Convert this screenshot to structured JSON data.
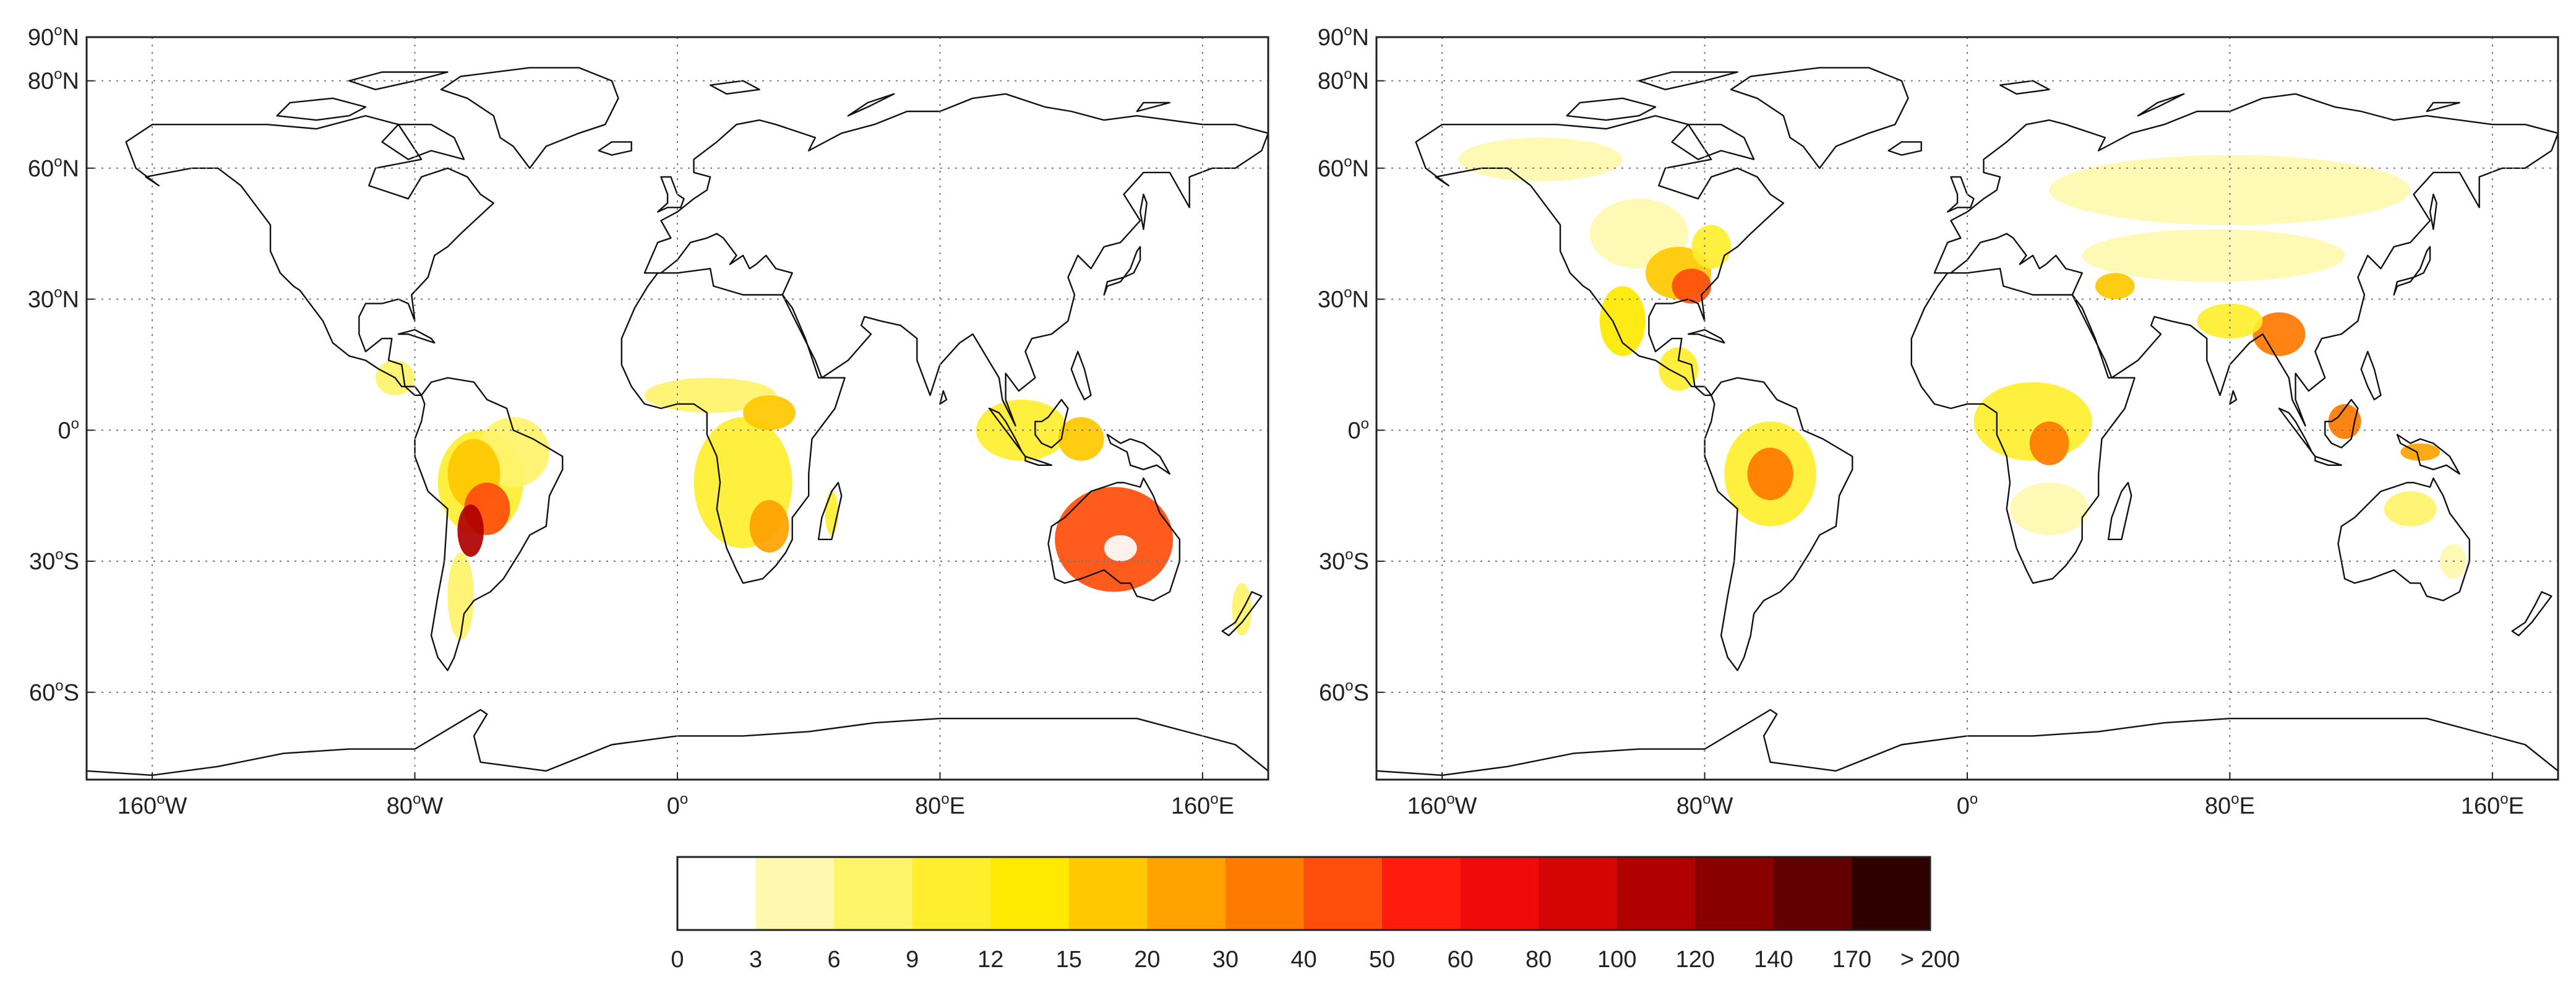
{
  "maps": [
    {
      "name": "left-map",
      "x_ticks": [
        {
          "value": -160,
          "deg": "160",
          "suffix": "W"
        },
        {
          "value": -80,
          "deg": "80",
          "suffix": "W"
        },
        {
          "value": 0,
          "deg": "0",
          "suffix": ""
        },
        {
          "value": 80,
          "deg": "80",
          "suffix": "E"
        },
        {
          "value": 160,
          "deg": "160",
          "suffix": "E"
        }
      ],
      "y_ticks": [
        {
          "value": 90,
          "deg": "90",
          "suffix": "N"
        },
        {
          "value": 80,
          "deg": "80",
          "suffix": "N"
        },
        {
          "value": 60,
          "deg": "60",
          "suffix": "N"
        },
        {
          "value": 30,
          "deg": "30",
          "suffix": "N"
        },
        {
          "value": 0,
          "deg": "0",
          "suffix": ""
        },
        {
          "value": -30,
          "deg": "30",
          "suffix": "S"
        },
        {
          "value": -60,
          "deg": "60",
          "suffix": "S"
        }
      ],
      "regions": [
        {
          "lon": -60,
          "lat": -12,
          "rx": 13,
          "ry": 12,
          "class": 3
        },
        {
          "lon": -50,
          "lat": -5,
          "rx": 11,
          "ry": 8,
          "class": 2
        },
        {
          "lon": -62,
          "lat": -10,
          "rx": 8,
          "ry": 8,
          "class": 5
        },
        {
          "lon": -58,
          "lat": -18,
          "rx": 7,
          "ry": 6,
          "class": 8
        },
        {
          "lon": -63,
          "lat": -23,
          "rx": 4,
          "ry": 6,
          "class": 12
        },
        {
          "lon": -66,
          "lat": -38,
          "rx": 4,
          "ry": 10,
          "class": 2
        },
        {
          "lon": -86,
          "lat": 12,
          "rx": 6,
          "ry": 4,
          "class": 2
        },
        {
          "lon": 20,
          "lat": -12,
          "rx": 15,
          "ry": 15,
          "class": 3
        },
        {
          "lon": 10,
          "lat": 8,
          "rx": 20,
          "ry": 4,
          "class": 2
        },
        {
          "lon": 28,
          "lat": 4,
          "rx": 8,
          "ry": 4,
          "class": 5
        },
        {
          "lon": 28,
          "lat": -22,
          "rx": 6,
          "ry": 6,
          "class": 6
        },
        {
          "lon": 47,
          "lat": -19,
          "rx": 2,
          "ry": 5,
          "class": 3
        },
        {
          "lon": 105,
          "lat": 0,
          "rx": 14,
          "ry": 7,
          "class": 3
        },
        {
          "lon": 123,
          "lat": -2,
          "rx": 7,
          "ry": 5,
          "class": 5
        },
        {
          "lon": 133,
          "lat": -25,
          "rx": 18,
          "ry": 12,
          "class": 8
        },
        {
          "lon": 135,
          "lat": -27,
          "rx": 5,
          "ry": 3,
          "class": 0
        },
        {
          "lon": 172,
          "lat": -41,
          "rx": 3,
          "ry": 6,
          "class": 2
        }
      ]
    },
    {
      "name": "right-map",
      "x_ticks": [
        {
          "value": -160,
          "deg": "160",
          "suffix": "W"
        },
        {
          "value": -80,
          "deg": "80",
          "suffix": "W"
        },
        {
          "value": 0,
          "deg": "0",
          "suffix": ""
        },
        {
          "value": 80,
          "deg": "80",
          "suffix": "E"
        },
        {
          "value": 160,
          "deg": "160",
          "suffix": "E"
        }
      ],
      "y_ticks": [
        {
          "value": 90,
          "deg": "90",
          "suffix": "N"
        },
        {
          "value": 80,
          "deg": "80",
          "suffix": "N"
        },
        {
          "value": 60,
          "deg": "60",
          "suffix": "N"
        },
        {
          "value": 30,
          "deg": "30",
          "suffix": "N"
        },
        {
          "value": 0,
          "deg": "0",
          "suffix": ""
        },
        {
          "value": -30,
          "deg": "30",
          "suffix": "S"
        },
        {
          "value": -60,
          "deg": "60",
          "suffix": "S"
        }
      ],
      "regions": [
        {
          "lon": -130,
          "lat": 62,
          "rx": 25,
          "ry": 5,
          "class": 1
        },
        {
          "lon": -100,
          "lat": 45,
          "rx": 15,
          "ry": 8,
          "class": 1
        },
        {
          "lon": -88,
          "lat": 36,
          "rx": 10,
          "ry": 6,
          "class": 5
        },
        {
          "lon": -84,
          "lat": 33,
          "rx": 6,
          "ry": 4,
          "class": 8
        },
        {
          "lon": -78,
          "lat": 42,
          "rx": 6,
          "ry": 5,
          "class": 3
        },
        {
          "lon": -105,
          "lat": 25,
          "rx": 7,
          "ry": 8,
          "class": 4
        },
        {
          "lon": -88,
          "lat": 14,
          "rx": 6,
          "ry": 5,
          "class": 3
        },
        {
          "lon": -60,
          "lat": -10,
          "rx": 14,
          "ry": 12,
          "class": 3
        },
        {
          "lon": -60,
          "lat": -10,
          "rx": 7,
          "ry": 6,
          "class": 7
        },
        {
          "lon": 20,
          "lat": 2,
          "rx": 18,
          "ry": 9,
          "class": 3
        },
        {
          "lon": 25,
          "lat": -3,
          "rx": 6,
          "ry": 5,
          "class": 7
        },
        {
          "lon": 25,
          "lat": -18,
          "rx": 12,
          "ry": 6,
          "class": 1
        },
        {
          "lon": 80,
          "lat": 55,
          "rx": 55,
          "ry": 8,
          "class": 1
        },
        {
          "lon": 75,
          "lat": 40,
          "rx": 40,
          "ry": 6,
          "class": 1
        },
        {
          "lon": 45,
          "lat": 33,
          "rx": 6,
          "ry": 3,
          "class": 5
        },
        {
          "lon": 95,
          "lat": 22,
          "rx": 8,
          "ry": 5,
          "class": 7
        },
        {
          "lon": 80,
          "lat": 25,
          "rx": 10,
          "ry": 4,
          "class": 3
        },
        {
          "lon": 115,
          "lat": 2,
          "rx": 5,
          "ry": 4,
          "class": 7
        },
        {
          "lon": 138,
          "lat": -5,
          "rx": 6,
          "ry": 2,
          "class": 6
        },
        {
          "lon": 135,
          "lat": -18,
          "rx": 8,
          "ry": 4,
          "class": 2
        },
        {
          "lon": 148,
          "lat": -30,
          "rx": 4,
          "ry": 4,
          "class": 1
        }
      ]
    }
  ],
  "colorbar": {
    "labels": [
      "0",
      "3",
      "6",
      "9",
      "12",
      "15",
      "20",
      "30",
      "40",
      "50",
      "60",
      "80",
      "100",
      "120",
      "140",
      "170",
      "> 200"
    ],
    "colors": [
      "#ffffff",
      "#fff9b0",
      "#fff36a",
      "#ffee2e",
      "#ffe900",
      "#ffc800",
      "#ffa200",
      "#ff7a00",
      "#ff4d0c",
      "#ff1c0c",
      "#f20a0a",
      "#d60505",
      "#b00000",
      "#8a0000",
      "#620000",
      "#2e0000"
    ]
  }
}
